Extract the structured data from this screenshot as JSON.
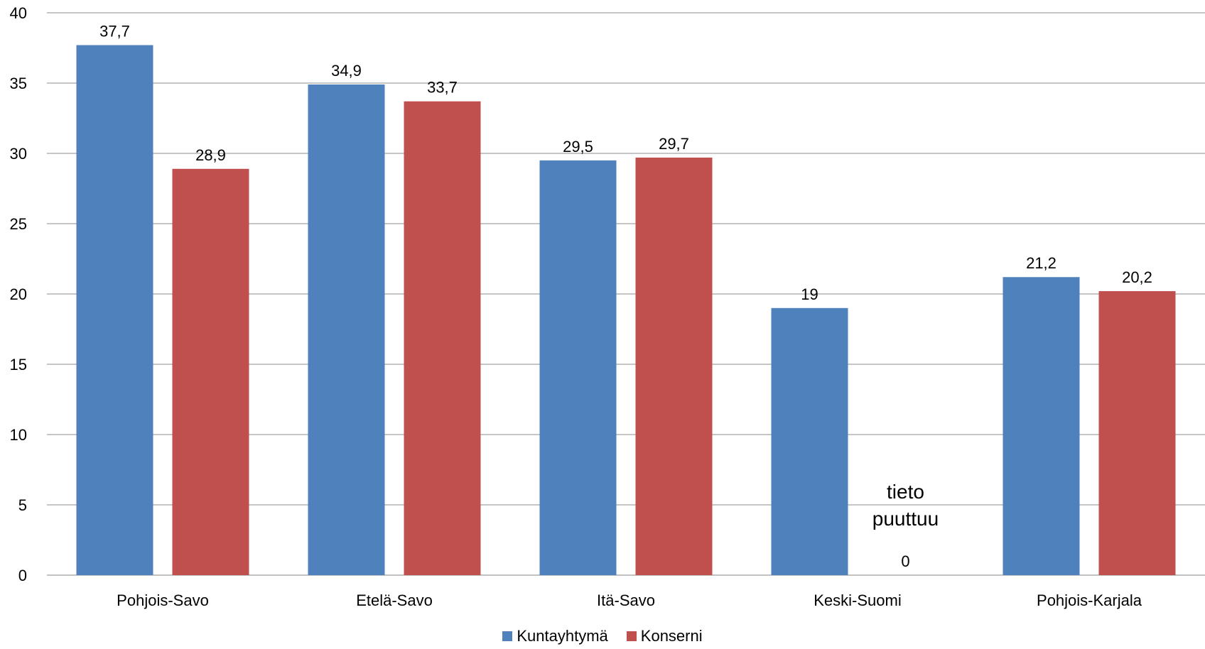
{
  "chart_data": {
    "type": "bar",
    "categories": [
      "Pohjois-Savo",
      "Etelä-Savo",
      "Itä-Savo",
      "Keski-Suomi",
      "Pohjois-Karjala"
    ],
    "series": [
      {
        "name": "Kuntayhtymä",
        "color": "#4f81bd",
        "values": [
          37.7,
          34.9,
          29.5,
          19,
          21.2
        ],
        "labels": [
          "37,7",
          "34,9",
          "29,5",
          "19",
          "21,2"
        ]
      },
      {
        "name": "Konserni",
        "color": "#c0504d",
        "values": [
          28.9,
          33.7,
          29.7,
          0,
          20.2
        ],
        "labels": [
          "28,9",
          "33,7",
          "29,7",
          "0",
          "20,2"
        ]
      }
    ],
    "annotations": [
      {
        "category": "Keski-Suomi",
        "series": "Konserni",
        "text_lines": [
          "tieto",
          "puuttuu"
        ]
      }
    ],
    "ylim": [
      0,
      40
    ],
    "yticks": [
      0,
      5,
      10,
      15,
      20,
      25,
      30,
      35,
      40
    ],
    "grid": true,
    "legend": "bottom",
    "title": "",
    "xlabel": "",
    "ylabel": ""
  }
}
